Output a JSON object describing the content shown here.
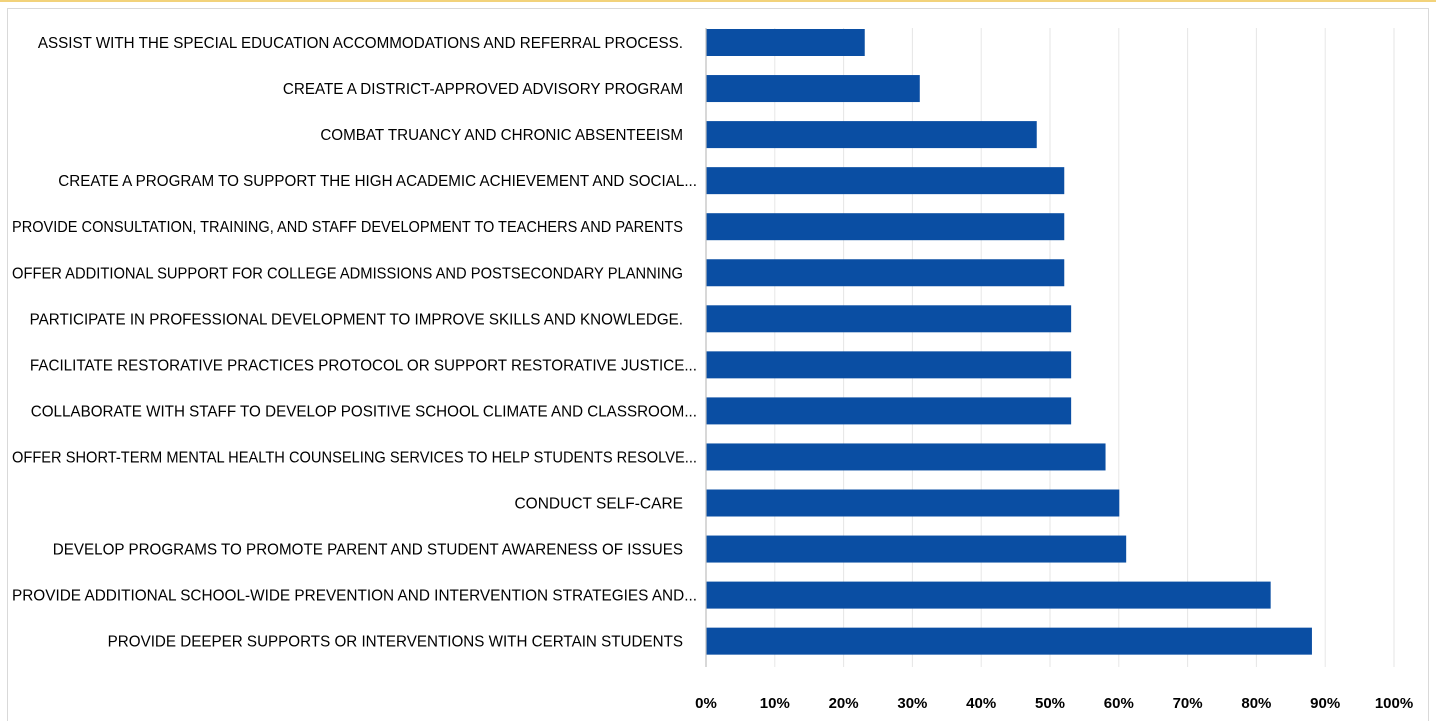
{
  "chart_data": {
    "type": "bar",
    "orientation": "horizontal",
    "categories": [
      "ASSIST WITH THE SPECIAL EDUCATION ACCOMMODATIONS AND REFERRAL PROCESS.",
      "CREATE A DISTRICT-APPROVED ADVISORY PROGRAM",
      "COMBAT TRUANCY AND CHRONIC ABSENTEEISM",
      "CREATE A PROGRAM TO SUPPORT THE HIGH ACADEMIC ACHIEVEMENT AND SOCIAL...",
      "PROVIDE CONSULTATION, TRAINING, AND STAFF DEVELOPMENT TO TEACHERS AND PARENTS",
      "OFFER ADDITIONAL SUPPORT FOR COLLEGE ADMISSIONS AND POSTSECONDARY PLANNING",
      "PARTICIPATE IN PROFESSIONAL DEVELOPMENT TO IMPROVE SKILLS AND KNOWLEDGE.",
      "FACILITATE RESTORATIVE PRACTICES PROTOCOL OR SUPPORT RESTORATIVE JUSTICE...",
      "COLLABORATE WITH STAFF TO DEVELOP POSITIVE SCHOOL CLIMATE AND CLASSROOM...",
      "OFFER SHORT-TERM MENTAL HEALTH COUNSELING SERVICES TO HELP STUDENTS RESOLVE...",
      "CONDUCT SELF-CARE",
      "DEVELOP PROGRAMS TO PROMOTE PARENT AND STUDENT AWARENESS OF ISSUES",
      "PROVIDE ADDITIONAL SCHOOL-WIDE PREVENTION AND INTERVENTION STRATEGIES AND...",
      "PROVIDE DEEPER SUPPORTS OR INTERVENTIONS WITH CERTAIN STUDENTS"
    ],
    "values": [
      23,
      31,
      48,
      52,
      52,
      52,
      53,
      53,
      53,
      58,
      60,
      61,
      82,
      88
    ],
    "value_unit": "%",
    "xlim": [
      0,
      100
    ],
    "x_ticks": [
      "0%",
      "10%",
      "20%",
      "30%",
      "40%",
      "50%",
      "60%",
      "70%",
      "80%",
      "90%",
      "100%"
    ],
    "title": "",
    "xlabel": "",
    "ylabel": "",
    "grid": "vertical",
    "legend": "none",
    "colors": {
      "bar": "#0a4ea3",
      "grid": "#e6e6e6",
      "axis": "#bfbfbf",
      "frame": "#d9d9d9",
      "top_rule": "#f2d27a"
    }
  }
}
